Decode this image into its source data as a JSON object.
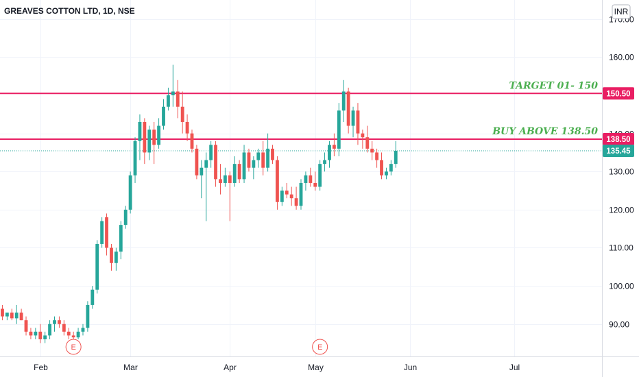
{
  "chart_data": {
    "type": "candlestick",
    "title": "GREAVES COTTON LTD, 1D, NSE",
    "currency": "INR",
    "ylim": [
      81.5,
      175
    ],
    "y_ticks": [
      {
        "value": 90,
        "label": "90.00"
      },
      {
        "value": 100,
        "label": "100.00"
      },
      {
        "value": 110,
        "label": "110.00"
      },
      {
        "value": 120,
        "label": "120.00"
      },
      {
        "value": 130,
        "label": "130.00"
      },
      {
        "value": 140,
        "label": "140.00"
      },
      {
        "value": 160,
        "label": "160.00"
      },
      {
        "value": 170,
        "label": "170.00"
      }
    ],
    "x_ticks": [
      {
        "index": 8,
        "label": "Feb"
      },
      {
        "index": 27,
        "label": "Mar"
      },
      {
        "index": 48,
        "label": "Apr"
      },
      {
        "index": 66,
        "label": "May"
      },
      {
        "index": 86,
        "label": "Jun"
      },
      {
        "index": 108,
        "label": "Jul"
      }
    ],
    "x_range": [
      -0.5,
      126.5
    ],
    "colors": {
      "up": "#26a69a",
      "down": "#ef5350",
      "level": "#e91e63",
      "last": "#26a69a",
      "annotation": "#4caf50"
    },
    "levels": [
      {
        "value": 150.5,
        "label": "150.50",
        "text": "TARGET 01- 150"
      },
      {
        "value": 138.5,
        "label": "138.50",
        "text": "BUY ABOVE 138.50"
      }
    ],
    "last_price": {
      "value": 135.45,
      "label": "135.45"
    },
    "earnings_markers": [
      {
        "index": 15,
        "label": "E"
      },
      {
        "index": 67,
        "label": "E"
      }
    ],
    "candles": [
      [
        94,
        95,
        91,
        92
      ],
      [
        92,
        93,
        91,
        93
      ],
      [
        93,
        94,
        91,
        91.5
      ],
      [
        91.5,
        95,
        90,
        93
      ],
      [
        93,
        94,
        91,
        91
      ],
      [
        91,
        92,
        87,
        88
      ],
      [
        88,
        89,
        86,
        87
      ],
      [
        87,
        89,
        86,
        88
      ],
      [
        88,
        90,
        85,
        86
      ],
      [
        86,
        88,
        85,
        87
      ],
      [
        87,
        91,
        86,
        90
      ],
      [
        90,
        92,
        88,
        91
      ],
      [
        91,
        92,
        89,
        90
      ],
      [
        90,
        91,
        87,
        88
      ],
      [
        88,
        89,
        86,
        87
      ],
      [
        87,
        88,
        86,
        86.5
      ],
      [
        86.5,
        89,
        86,
        88
      ],
      [
        88,
        90,
        87,
        89
      ],
      [
        89,
        96,
        88,
        95
      ],
      [
        95,
        100,
        94,
        99
      ],
      [
        99,
        112,
        98,
        111
      ],
      [
        111,
        118,
        110,
        117
      ],
      [
        118,
        119,
        108,
        110
      ],
      [
        110,
        111,
        104,
        106
      ],
      [
        106,
        110,
        104,
        109
      ],
      [
        109,
        117,
        107,
        116
      ],
      [
        116,
        121,
        115,
        120
      ],
      [
        120,
        130,
        119,
        129
      ],
      [
        129,
        139,
        127,
        138
      ],
      [
        138,
        145,
        133,
        143
      ],
      [
        143,
        144,
        132,
        135
      ],
      [
        135,
        142,
        133,
        141
      ],
      [
        141,
        143,
        132,
        137
      ],
      [
        137,
        144,
        136,
        142
      ],
      [
        142,
        149,
        141,
        147
      ],
      [
        147,
        152,
        146,
        150
      ],
      [
        150,
        158,
        147,
        151
      ],
      [
        151,
        154,
        144,
        147
      ],
      [
        147,
        151,
        140,
        143
      ],
      [
        143,
        145,
        138,
        140
      ],
      [
        140,
        141,
        135,
        136
      ],
      [
        136,
        137,
        128,
        129
      ],
      [
        129,
        133,
        123,
        131
      ],
      [
        131,
        135,
        117,
        133
      ],
      [
        133,
        138,
        131,
        137
      ],
      [
        137,
        138,
        126,
        128
      ],
      [
        128,
        132,
        124,
        127
      ],
      [
        127,
        131,
        126,
        129
      ],
      [
        129,
        130,
        117,
        127
      ],
      [
        127,
        134,
        126,
        132
      ],
      [
        132,
        133,
        127,
        128
      ],
      [
        128,
        137,
        127,
        135
      ],
      [
        135,
        136,
        130,
        131
      ],
      [
        131,
        134,
        128,
        133
      ],
      [
        133,
        136,
        131,
        135
      ],
      [
        135,
        138,
        129,
        131
      ],
      [
        131,
        140,
        130,
        136
      ],
      [
        136,
        137,
        132,
        133
      ],
      [
        133,
        134,
        120,
        122
      ],
      [
        122,
        126,
        121,
        125
      ],
      [
        125,
        127,
        123,
        124
      ],
      [
        124,
        126,
        121,
        123
      ],
      [
        123,
        126,
        120,
        121
      ],
      [
        121,
        128,
        120,
        127
      ],
      [
        127,
        130,
        125,
        129
      ],
      [
        129,
        131,
        126,
        127
      ],
      [
        127,
        130,
        125,
        126
      ],
      [
        126,
        133,
        125,
        132
      ],
      [
        132,
        135,
        130,
        133
      ],
      [
        133,
        138,
        131,
        137
      ],
      [
        137,
        140,
        134,
        136
      ],
      [
        136,
        148,
        134,
        146
      ],
      [
        146,
        154,
        143,
        151
      ],
      [
        151,
        152,
        140,
        142
      ],
      [
        142,
        147,
        139,
        146
      ],
      [
        146,
        148,
        137,
        140
      ],
      [
        140,
        141,
        136,
        139
      ],
      [
        139,
        142,
        135,
        136
      ],
      [
        136,
        138,
        133,
        135
      ],
      [
        135,
        136,
        131,
        133
      ],
      [
        133,
        135,
        128,
        129
      ],
      [
        129,
        131,
        128,
        130
      ],
      [
        130,
        133,
        129,
        132
      ],
      [
        132,
        138,
        131,
        135.45
      ]
    ]
  }
}
